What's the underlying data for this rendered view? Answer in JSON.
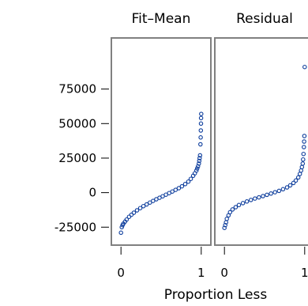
{
  "chart_data": {
    "type": "scatter",
    "subtype": "residual-fit spread plot",
    "panels": [
      {
        "title": "Fit–Mean",
        "points": [
          [
            0.0,
            -29000
          ],
          [
            0.01,
            -25000
          ],
          [
            0.02,
            -23500
          ],
          [
            0.03,
            -22500
          ],
          [
            0.05,
            -21000
          ],
          [
            0.07,
            -19500
          ],
          [
            0.1,
            -17500
          ],
          [
            0.13,
            -16000
          ],
          [
            0.16,
            -14500
          ],
          [
            0.2,
            -12800
          ],
          [
            0.24,
            -11200
          ],
          [
            0.28,
            -9800
          ],
          [
            0.32,
            -8500
          ],
          [
            0.36,
            -7200
          ],
          [
            0.4,
            -6000
          ],
          [
            0.44,
            -4800
          ],
          [
            0.48,
            -3700
          ],
          [
            0.52,
            -2600
          ],
          [
            0.56,
            -1500
          ],
          [
            0.6,
            -300
          ],
          [
            0.64,
            800
          ],
          [
            0.68,
            2000
          ],
          [
            0.72,
            3200
          ],
          [
            0.76,
            4600
          ],
          [
            0.8,
            6200
          ],
          [
            0.84,
            8000
          ],
          [
            0.87,
            10000
          ],
          [
            0.9,
            12200
          ],
          [
            0.92,
            14000
          ],
          [
            0.94,
            16000
          ],
          [
            0.95,
            17500
          ],
          [
            0.96,
            19000
          ],
          [
            0.97,
            21000
          ],
          [
            0.975,
            23000
          ],
          [
            0.98,
            25000
          ],
          [
            0.985,
            27000
          ],
          [
            0.99,
            35000
          ],
          [
            0.993,
            40000
          ],
          [
            0.995,
            45000
          ],
          [
            0.997,
            50000
          ],
          [
            0.998,
            54000
          ],
          [
            1.0,
            57000
          ]
        ]
      },
      {
        "title": "Residual",
        "points": [
          [
            0.0,
            -25500
          ],
          [
            0.01,
            -23500
          ],
          [
            0.02,
            -21500
          ],
          [
            0.03,
            -19000
          ],
          [
            0.05,
            -16500
          ],
          [
            0.07,
            -14200
          ],
          [
            0.1,
            -12200
          ],
          [
            0.14,
            -10500
          ],
          [
            0.18,
            -9000
          ],
          [
            0.23,
            -7600
          ],
          [
            0.28,
            -6400
          ],
          [
            0.33,
            -5300
          ],
          [
            0.38,
            -4300
          ],
          [
            0.43,
            -3400
          ],
          [
            0.48,
            -2500
          ],
          [
            0.53,
            -1600
          ],
          [
            0.58,
            -700
          ],
          [
            0.63,
            300
          ],
          [
            0.68,
            1300
          ],
          [
            0.73,
            2500
          ],
          [
            0.78,
            3800
          ],
          [
            0.82,
            5300
          ],
          [
            0.86,
            7000
          ],
          [
            0.89,
            8800
          ],
          [
            0.92,
            11000
          ],
          [
            0.94,
            13500
          ],
          [
            0.955,
            16000
          ],
          [
            0.965,
            18500
          ],
          [
            0.975,
            21000
          ],
          [
            0.98,
            24000
          ],
          [
            0.985,
            28000
          ],
          [
            0.99,
            33000
          ],
          [
            0.993,
            37000
          ],
          [
            0.996,
            41000
          ],
          [
            1.0,
            91000
          ]
        ]
      }
    ],
    "xlabel": "Proportion Less",
    "xlim": [
      -0.12,
      1.12
    ],
    "xticks": [
      0,
      1
    ],
    "ylim": [
      -38000,
      112000
    ],
    "yticks": [
      -25000,
      0,
      25000,
      50000,
      75000
    ],
    "marker_color": "#0d3d9c",
    "frame_color": "#808080",
    "grid": false,
    "legend": "none"
  }
}
